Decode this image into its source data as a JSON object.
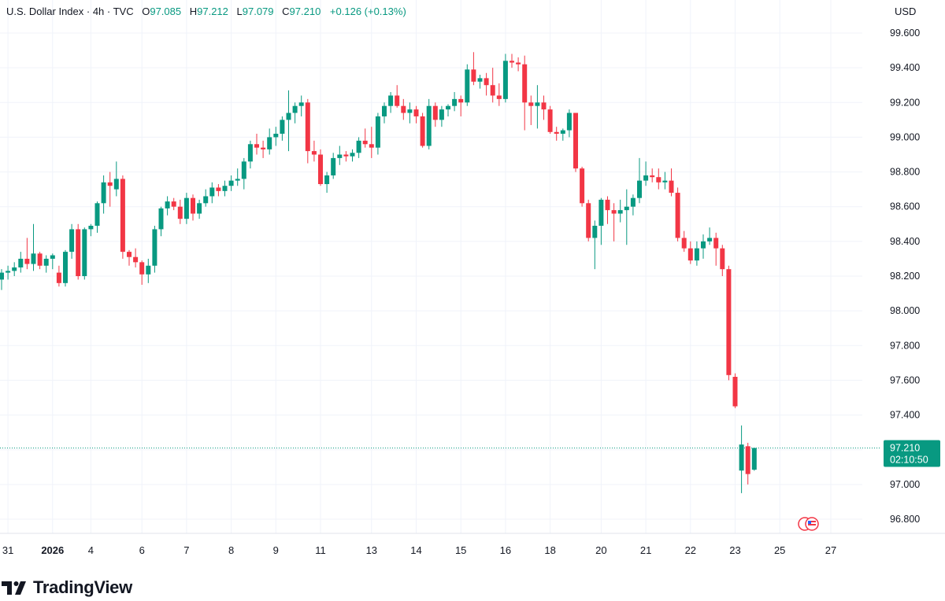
{
  "legend": {
    "symbol": "U.S. Dollar Index · 4h · TVC",
    "open_label": "O",
    "open": "97.085",
    "high_label": "H",
    "high": "97.212",
    "low_label": "L",
    "low": "97.079",
    "close_label": "C",
    "close": "97.210",
    "change": "+0.126 (+0.13%)"
  },
  "currency": "USD",
  "price_label": {
    "price": "97.210",
    "countdown": "02:10:50"
  },
  "brand": "TradingView",
  "colors": {
    "up": "#089981",
    "down": "#F23645",
    "grid": "#F0F3FA",
    "text": "#131722",
    "price_line": "#089981"
  },
  "chart_data": {
    "type": "candlestick",
    "title": "U.S. Dollar Index",
    "timeframe": "4h",
    "ylim": [
      96.7,
      99.66
    ],
    "y_ticks": [
      "99.600",
      "99.400",
      "99.200",
      "99.000",
      "98.800",
      "98.600",
      "98.400",
      "98.200",
      "98.000",
      "97.800",
      "97.600",
      "97.400",
      "97.200",
      "97.000",
      "96.800"
    ],
    "x_ticks": [
      {
        "label": "31",
        "i": 1
      },
      {
        "label": "2026",
        "i": 8,
        "bold": true
      },
      {
        "label": "4",
        "i": 14
      },
      {
        "label": "6",
        "i": 22
      },
      {
        "label": "7",
        "i": 29
      },
      {
        "label": "8",
        "i": 36
      },
      {
        "label": "9",
        "i": 43
      },
      {
        "label": "11",
        "i": 50
      },
      {
        "label": "13",
        "i": 58
      },
      {
        "label": "14",
        "i": 65
      },
      {
        "label": "15",
        "i": 72
      },
      {
        "label": "16",
        "i": 79
      },
      {
        "label": "18",
        "i": 86
      },
      {
        "label": "20",
        "i": 94
      },
      {
        "label": "21",
        "i": 101
      },
      {
        "label": "22",
        "i": 108
      },
      {
        "label": "23",
        "i": 115
      },
      {
        "label": "25",
        "i": 122
      },
      {
        "label": "27",
        "i": 130
      }
    ],
    "candles": [
      [
        98.18,
        98.24,
        98.12,
        98.22
      ],
      [
        98.22,
        98.26,
        98.18,
        98.23
      ],
      [
        98.23,
        98.28,
        98.2,
        98.25
      ],
      [
        98.25,
        98.34,
        98.22,
        98.3
      ],
      [
        98.3,
        98.42,
        98.24,
        98.27
      ],
      [
        98.27,
        98.5,
        98.23,
        98.33
      ],
      [
        98.33,
        98.34,
        98.24,
        98.26
      ],
      [
        98.26,
        98.32,
        98.22,
        98.3
      ],
      [
        98.3,
        98.33,
        98.24,
        98.32
      ],
      [
        98.22,
        98.26,
        98.14,
        98.16
      ],
      [
        98.16,
        98.35,
        98.14,
        98.34
      ],
      [
        98.34,
        98.5,
        98.3,
        98.47
      ],
      [
        98.47,
        98.5,
        98.18,
        98.2
      ],
      [
        98.2,
        98.48,
        98.18,
        98.47
      ],
      [
        98.47,
        98.5,
        98.43,
        98.49
      ],
      [
        98.49,
        98.63,
        98.45,
        98.62
      ],
      [
        98.62,
        98.78,
        98.56,
        98.74
      ],
      [
        98.74,
        98.8,
        98.6,
        98.72
      ],
      [
        98.7,
        98.86,
        98.66,
        98.76
      ],
      [
        98.76,
        98.78,
        98.3,
        98.34
      ],
      [
        98.34,
        98.35,
        98.26,
        98.31
      ],
      [
        98.31,
        98.36,
        98.25,
        98.28
      ],
      [
        98.28,
        98.29,
        98.15,
        98.21
      ],
      [
        98.21,
        98.3,
        98.16,
        98.26
      ],
      [
        98.26,
        98.49,
        98.22,
        98.47
      ],
      [
        98.47,
        98.6,
        98.43,
        98.59
      ],
      [
        98.59,
        98.66,
        98.55,
        98.63
      ],
      [
        98.63,
        98.65,
        98.58,
        98.6
      ],
      [
        98.6,
        98.64,
        98.5,
        98.53
      ],
      [
        98.53,
        98.68,
        98.5,
        98.65
      ],
      [
        98.65,
        98.67,
        98.52,
        98.56
      ],
      [
        98.56,
        98.64,
        98.53,
        98.62
      ],
      [
        98.62,
        98.7,
        98.6,
        98.66
      ],
      [
        98.66,
        98.74,
        98.62,
        98.71
      ],
      [
        98.71,
        98.73,
        98.66,
        98.69
      ],
      [
        98.69,
        98.75,
        98.66,
        98.72
      ],
      [
        98.72,
        98.78,
        98.69,
        98.75
      ],
      [
        98.75,
        98.82,
        98.72,
        98.76
      ],
      [
        98.76,
        98.88,
        98.7,
        98.86
      ],
      [
        98.86,
        98.98,
        98.82,
        98.96
      ],
      [
        98.96,
        99.02,
        98.9,
        98.94
      ],
      [
        98.94,
        98.98,
        98.88,
        98.93
      ],
      [
        98.93,
        99.05,
        98.9,
        99.0
      ],
      [
        99.0,
        99.06,
        98.95,
        99.02
      ],
      [
        99.02,
        99.12,
        98.98,
        99.1
      ],
      [
        99.1,
        99.27,
        98.92,
        99.14
      ],
      [
        99.14,
        99.2,
        99.08,
        99.18
      ],
      [
        99.18,
        99.24,
        99.12,
        99.2
      ],
      [
        99.2,
        99.22,
        98.85,
        98.92
      ],
      [
        98.92,
        98.98,
        98.86,
        98.9
      ],
      [
        98.9,
        98.93,
        98.72,
        98.73
      ],
      [
        98.73,
        98.8,
        98.68,
        98.78
      ],
      [
        98.78,
        98.91,
        98.76,
        98.88
      ],
      [
        98.88,
        98.95,
        98.84,
        98.9
      ],
      [
        98.9,
        98.92,
        98.86,
        98.89
      ],
      [
        98.89,
        98.93,
        98.86,
        98.91
      ],
      [
        98.91,
        99.0,
        98.88,
        98.98
      ],
      [
        98.98,
        99.05,
        98.94,
        98.96
      ],
      [
        98.96,
        99.06,
        98.88,
        98.94
      ],
      [
        98.94,
        99.14,
        98.9,
        99.12
      ],
      [
        99.12,
        99.2,
        99.08,
        99.18
      ],
      [
        99.18,
        99.26,
        99.14,
        99.24
      ],
      [
        99.24,
        99.3,
        99.17,
        99.18
      ],
      [
        99.18,
        99.22,
        99.1,
        99.14
      ],
      [
        99.14,
        99.2,
        99.08,
        99.16
      ],
      [
        99.16,
        99.18,
        99.08,
        99.12
      ],
      [
        99.12,
        99.14,
        98.94,
        98.95
      ],
      [
        98.95,
        99.22,
        98.93,
        99.18
      ],
      [
        99.18,
        99.2,
        99.06,
        99.1
      ],
      [
        99.1,
        99.18,
        99.06,
        99.16
      ],
      [
        99.16,
        99.19,
        99.12,
        99.18
      ],
      [
        99.18,
        99.26,
        99.15,
        99.22
      ],
      [
        99.22,
        99.24,
        99.12,
        99.2
      ],
      [
        99.2,
        99.42,
        99.18,
        99.39
      ],
      [
        99.39,
        99.49,
        99.3,
        99.32
      ],
      [
        99.32,
        99.36,
        99.28,
        99.34
      ],
      [
        99.34,
        99.37,
        99.24,
        99.3
      ],
      [
        99.3,
        99.4,
        99.2,
        99.24
      ],
      [
        99.24,
        99.31,
        99.18,
        99.22
      ],
      [
        99.22,
        99.48,
        99.2,
        99.44
      ],
      [
        99.44,
        99.48,
        99.4,
        99.43
      ],
      [
        99.43,
        99.46,
        99.38,
        99.42
      ],
      [
        99.42,
        99.47,
        99.04,
        99.2
      ],
      [
        99.2,
        99.24,
        99.07,
        99.18
      ],
      [
        99.18,
        99.3,
        99.05,
        99.2
      ],
      [
        99.2,
        99.24,
        99.1,
        99.16
      ],
      [
        99.16,
        99.18,
        99.02,
        99.03
      ],
      [
        99.03,
        99.06,
        98.98,
        99.02
      ],
      [
        99.02,
        99.05,
        98.98,
        99.04
      ],
      [
        99.04,
        99.16,
        99.0,
        99.14
      ],
      [
        99.14,
        99.14,
        98.8,
        98.82
      ],
      [
        98.82,
        98.83,
        98.6,
        98.62
      ],
      [
        98.62,
        98.64,
        98.4,
        98.42
      ],
      [
        98.42,
        98.52,
        98.24,
        98.49
      ],
      [
        98.49,
        98.65,
        98.38,
        98.64
      ],
      [
        98.64,
        98.66,
        98.5,
        98.58
      ],
      [
        98.58,
        98.62,
        98.4,
        98.56
      ],
      [
        98.56,
        98.64,
        98.51,
        98.58
      ],
      [
        98.58,
        98.7,
        98.38,
        98.6
      ],
      [
        98.6,
        98.67,
        98.55,
        98.65
      ],
      [
        98.65,
        98.88,
        98.62,
        98.75
      ],
      [
        98.75,
        98.86,
        98.72,
        98.78
      ],
      [
        98.78,
        98.82,
        98.74,
        98.77
      ],
      [
        98.77,
        98.82,
        98.7,
        98.74
      ],
      [
        98.74,
        98.8,
        98.7,
        98.75
      ],
      [
        98.75,
        98.82,
        98.66,
        98.68
      ],
      [
        98.68,
        98.71,
        98.4,
        98.42
      ],
      [
        98.42,
        98.46,
        98.34,
        98.36
      ],
      [
        98.36,
        98.4,
        98.27,
        98.29
      ],
      [
        98.29,
        98.4,
        98.26,
        98.36
      ],
      [
        98.36,
        98.44,
        98.3,
        98.4
      ],
      [
        98.4,
        98.48,
        98.38,
        98.42
      ],
      [
        98.42,
        98.45,
        98.26,
        98.36
      ],
      [
        98.36,
        98.38,
        98.2,
        98.24
      ],
      [
        98.24,
        98.26,
        97.6,
        97.63
      ],
      [
        97.62,
        97.64,
        97.44,
        97.45
      ],
      [
        97.08,
        97.34,
        96.95,
        97.23
      ],
      [
        97.22,
        97.24,
        97.0,
        97.06
      ],
      [
        97.085,
        97.212,
        97.079,
        97.21
      ]
    ],
    "candle_x_index": [
      0,
      1,
      2,
      3,
      4,
      5,
      6,
      7,
      8,
      9,
      10,
      11,
      12,
      13,
      14,
      15,
      16,
      17,
      18,
      19,
      20,
      21,
      22,
      23,
      24,
      25,
      26,
      27,
      28,
      29,
      30,
      31,
      32,
      33,
      34,
      35,
      36,
      37,
      38,
      39,
      40,
      41,
      42,
      43,
      44,
      45,
      46,
      47,
      48,
      49,
      50,
      51,
      52,
      53,
      54,
      55,
      56,
      57,
      58,
      59,
      60,
      61,
      62,
      63,
      64,
      65,
      66,
      67,
      68,
      69,
      70,
      71,
      72,
      73,
      74,
      75,
      76,
      77,
      78,
      79,
      80,
      81,
      82,
      83,
      84,
      85,
      86,
      87,
      88,
      89,
      90,
      91,
      92,
      93,
      94,
      95,
      96,
      97,
      98,
      99,
      100,
      101,
      102,
      103,
      104,
      105,
      106,
      107,
      108,
      109,
      110,
      111,
      112,
      113,
      114,
      115,
      116,
      117,
      118,
      119,
      120,
      121,
      122
    ],
    "last_price": 97.21,
    "grid": true
  }
}
